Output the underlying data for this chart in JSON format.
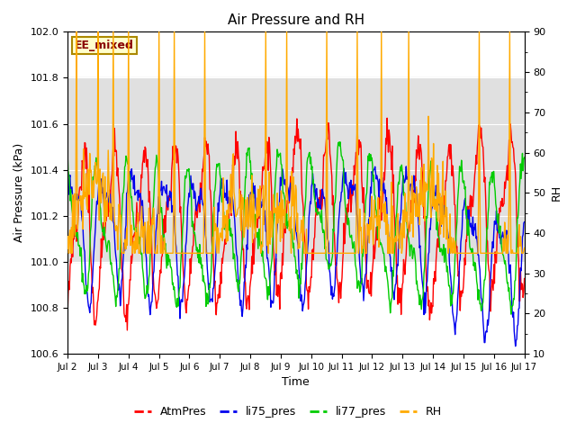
{
  "title": "Air Pressure and RH",
  "xlabel": "Time",
  "ylabel_left": "Air Pressure (kPa)",
  "ylabel_right": "RH",
  "ylim_left": [
    100.6,
    102.0
  ],
  "ylim_right": [
    10,
    90
  ],
  "yticks_left": [
    100.6,
    100.8,
    101.0,
    101.2,
    101.4,
    101.6,
    101.8,
    102.0
  ],
  "yticks_right": [
    10,
    20,
    30,
    40,
    50,
    60,
    70,
    80,
    90
  ],
  "xtick_labels": [
    "Jul 2",
    "Jul 3",
    "Jul 4",
    "Jul 5",
    "Jul 6",
    "Jul 7",
    "Jul 8",
    "Jul 9",
    "Jul 10",
    "Jul 11",
    "Jul 12",
    "Jul 13",
    "Jul 14",
    "Jul 15",
    "Jul 16",
    "Jul 17"
  ],
  "shaded_band_lo": 101.0,
  "shaded_band_hi": 101.8,
  "band_color": "#e0e0e0",
  "bg_color": "#ffffff",
  "grid_color": "#ffffff",
  "line_colors": {
    "AtmPres": "#ff0000",
    "li75_pres": "#0000ee",
    "li77_pres": "#00cc00",
    "RH": "#ffaa00"
  },
  "annotation_text": "EE_mixed",
  "annotation_fgcolor": "#880000",
  "annotation_bgcolor": "#ffffcc",
  "annotation_edgecolor": "#aa8800",
  "figsize": [
    6.4,
    4.8
  ],
  "dpi": 100
}
